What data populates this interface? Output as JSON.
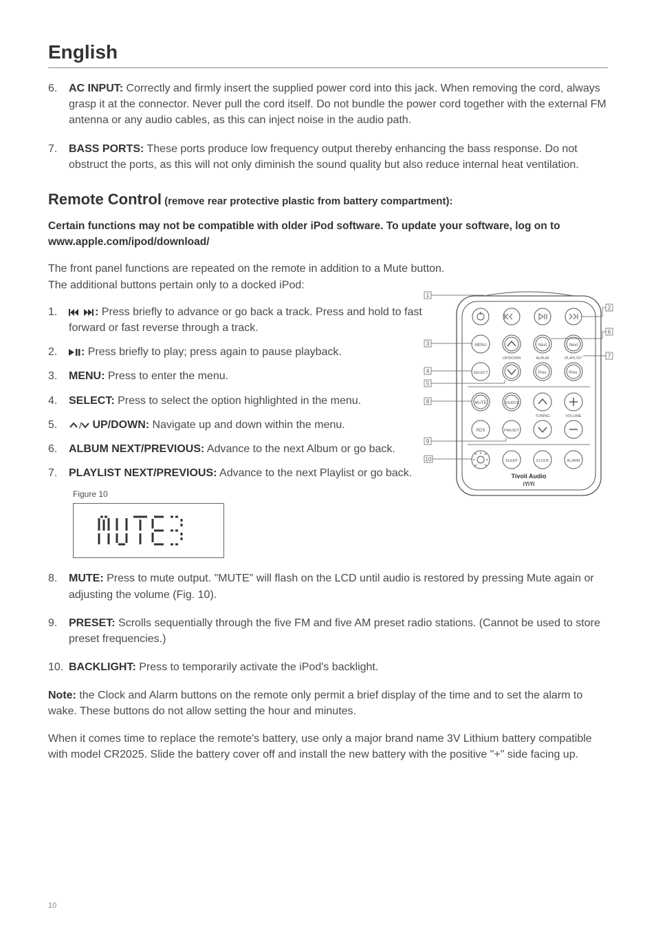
{
  "page": {
    "title": "English",
    "items_a": [
      {
        "num": "6.",
        "label": "AC INPUT:",
        "text": " Correctly and firmly insert the supplied power cord into this jack. When removing the cord, always grasp it at the connector. Never pull the cord itself. Do not bundle the power cord together with the external FM antenna or any audio cables, as this can inject noise in the audio path."
      },
      {
        "num": "7.",
        "label": "BASS PORTS:",
        "text": " These ports produce low frequency output thereby enhancing the bass response. Do not obstruct the ports, as this will not only diminish the sound quality but also reduce internal heat ventilation."
      }
    ],
    "remote_title": "Remote Control",
    "remote_sub": " (remove rear protective plastic from battery compartment):",
    "compat_note": "Certain functions may not be compatible with older iPod software. To update your software, log on to www.apple.com/ipod/download/",
    "front_note1": "The front panel functions are repeated on the remote in addition to a Mute button.",
    "front_note2": "The additional buttons pertain only to a docked iPod:",
    "remote_items": [
      {
        "num": "1.",
        "icon": "skip",
        "label": ":",
        "text": " Press briefly to advance or go back a track. Press and hold to fast forward or fast reverse through a track."
      },
      {
        "num": "2.",
        "icon": "play",
        "label": ":",
        "text": " Press briefly to play; press again to pause playback."
      },
      {
        "num": "3.",
        "label": "MENU:",
        "text": " Press to enter the menu."
      },
      {
        "num": "4.",
        "label": "SELECT:",
        "text": " Press to select the option highlighted in the menu."
      },
      {
        "num": "5.",
        "icon": "updown",
        "label": " UP/DOWN:",
        "text": " Navigate up and down within the menu."
      },
      {
        "num": "6.",
        "label": "ALBUM NEXT/PREVIOUS:",
        "text": " Advance to the next Album or go back."
      },
      {
        "num": "7.",
        "label": "PLAYLIST NEXT/PREVIOUS:",
        "text": " Advance to the next Playlist or go back."
      }
    ],
    "figure_label": "Figure 10",
    "figure_text": "MUTE",
    "items_b": [
      {
        "num": "8.",
        "label": "MUTE:",
        "text": " Press to mute output. \"MUTE\" will flash on the LCD until audio is restored by pressing Mute again or adjusting the volume (Fig. 10)."
      },
      {
        "num": "9.",
        "label": "PRESET:",
        "text": " Scrolls sequentially through the five FM and five AM preset radio stations. (Cannot be used to store preset frequencies.)"
      },
      {
        "num": "10.",
        "label": "BACKLIGHT:",
        "text": " Press to temporarily activate the iPod's backlight."
      }
    ],
    "note_label": "Note:",
    "note_text": " the Clock and Alarm buttons on the remote only permit a brief display of the time and to set the alarm to wake. These buttons do not allow setting the hour and minutes.",
    "battery_text": "When it comes time to replace the remote's battery, use only a major brand name 3V Lithium battery compatible with model CR2025. Slide the battery cover off and install the new battery with the positive \"+\" side facing up.",
    "page_num": "10",
    "remote_diagram": {
      "callouts": [
        "1",
        "2",
        "3",
        "4",
        "5",
        "6",
        "7",
        "8",
        "9",
        "10"
      ],
      "buttons_row1": [
        "power",
        "prev",
        "playpause",
        "next"
      ],
      "row2": [
        "MENU",
        "up",
        "Next",
        "Next"
      ],
      "row2_labels": [
        "",
        "UP/DOWN",
        "ALBUM",
        "PLAYLIST"
      ],
      "row3": [
        "SELECT",
        "down",
        "Prev.",
        "Prev."
      ],
      "row4": [
        "MUTE",
        "SOURCE",
        "up",
        "+"
      ],
      "row4_labels": [
        "",
        "",
        "TUNING",
        "VOLUME"
      ],
      "row5": [
        "RDS",
        "PRESET",
        "down",
        "-"
      ],
      "row6": [
        "light",
        "SLEEP",
        "CLOCK",
        "ALARM"
      ],
      "brand": "Tivoli Audio",
      "model": "iYiYi"
    }
  }
}
